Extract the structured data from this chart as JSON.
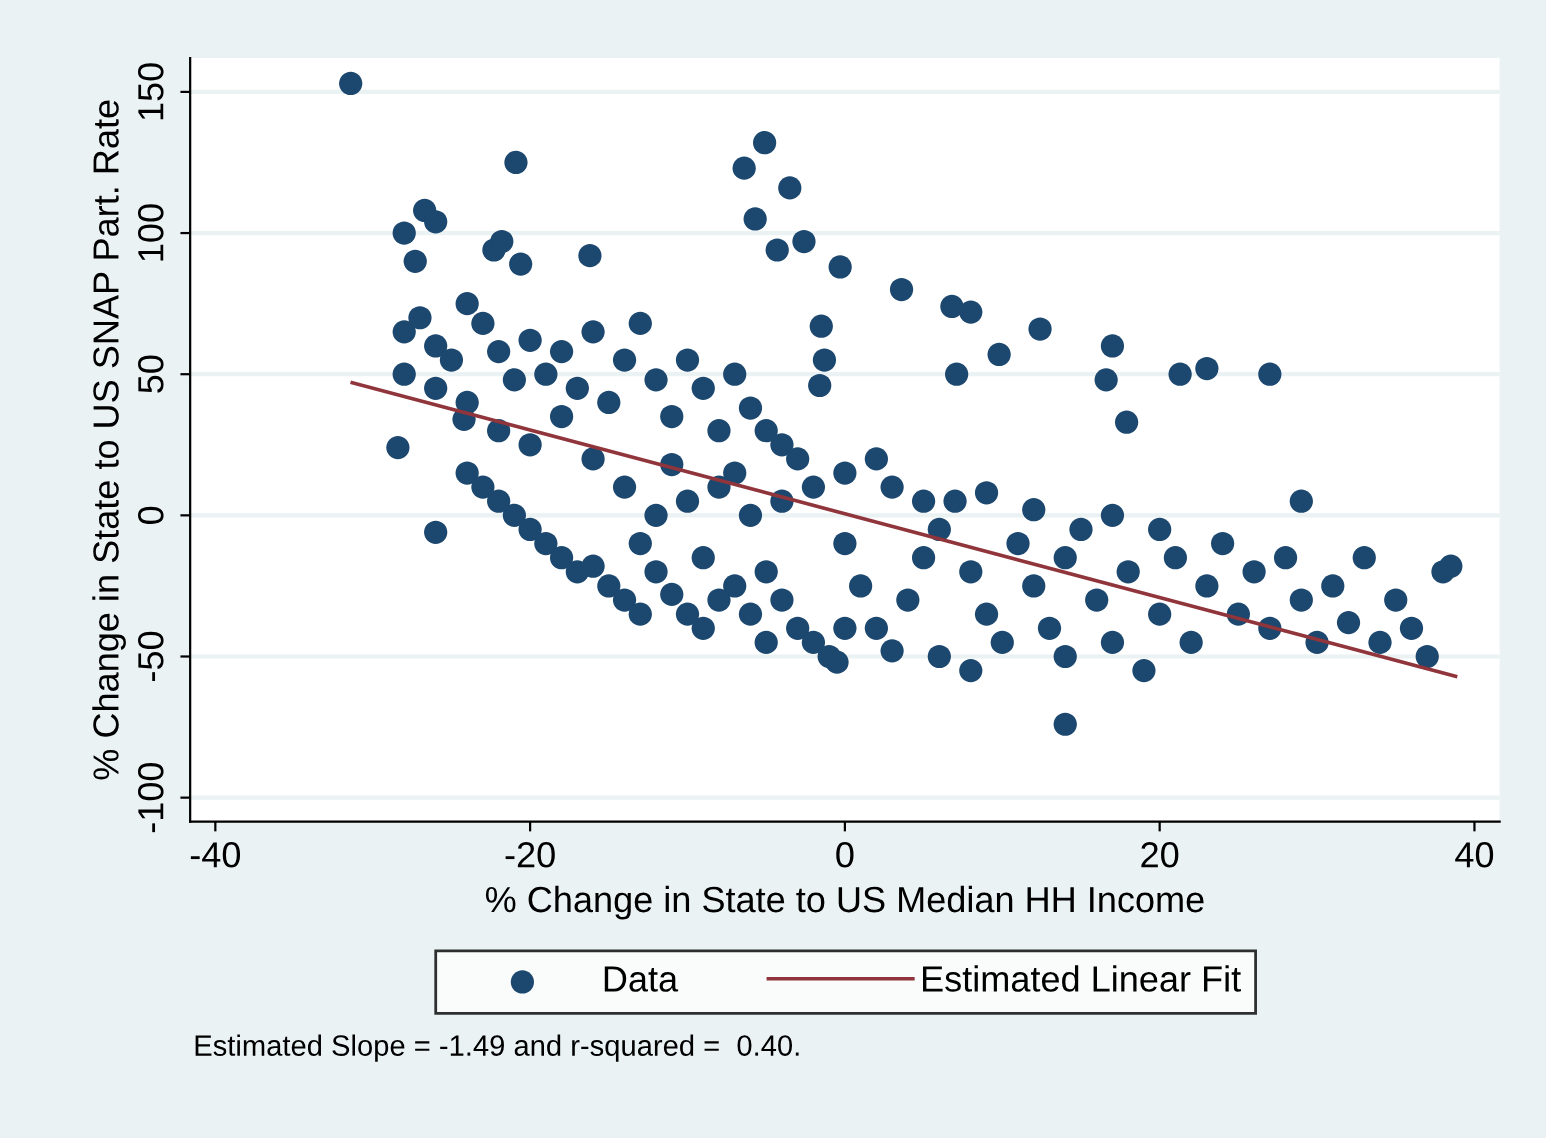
{
  "chart_data": {
    "type": "scatter",
    "xlabel": "% Change in State to US Median HH Income",
    "ylabel": "% Change in State to US SNAP Part. Rate",
    "xlim": [
      -41.6,
      41.6
    ],
    "xticks": [
      -40,
      -20,
      0,
      20,
      40
    ],
    "ylim": [
      -108.5,
      162
    ],
    "yticks": [
      -100,
      -50,
      0,
      50,
      100,
      150
    ],
    "grid": "y",
    "legend": "bottom",
    "annotations": [
      "Estimated Slope = -1.49 and r-squared =  0.40."
    ],
    "series": [
      {
        "name": "Data",
        "color": "#1c476e",
        "marker": "circle",
        "x": [
          -31.4,
          -20.9,
          -28,
          -26.7,
          -26,
          -27.3,
          -22.3,
          -21.8,
          -16.2,
          -20.6,
          -6.4,
          -5.1,
          -3.5,
          -5.7,
          -4.3,
          -2.6,
          -0.3,
          3.6,
          6.8,
          8.0,
          12.4,
          7.1,
          9.8,
          17.0,
          16.6,
          17.9,
          21.3,
          23,
          27,
          29,
          14,
          -1.5,
          -1.3,
          -1.6,
          -26,
          -28.4,
          -24.2,
          -28,
          -27,
          -26,
          -25,
          -24,
          -23,
          -22,
          -21,
          -20,
          -19,
          -18,
          -17,
          -16,
          -15,
          -14,
          -13,
          -12,
          -11,
          -10,
          -9,
          -8,
          -7,
          -6,
          -5,
          -4,
          -28,
          -26,
          -24,
          -22,
          -20,
          -18,
          -16,
          -24,
          -23,
          -22,
          -21,
          -20,
          -19,
          -18,
          -17,
          -16,
          -15,
          -14,
          -13,
          -12,
          -11,
          -10,
          -9,
          -8,
          -7,
          -6,
          -5,
          -4,
          -3,
          -2,
          -1,
          -12,
          -10,
          -8,
          -6,
          -4,
          -2,
          0,
          2,
          -14,
          -11,
          -7,
          -3,
          0,
          1,
          2,
          3,
          4,
          5,
          6,
          7,
          8,
          9,
          10,
          6,
          8,
          11,
          12,
          13,
          14,
          15,
          16,
          17,
          18,
          19,
          20,
          21,
          22,
          23,
          24,
          25,
          26,
          27,
          28,
          29,
          30,
          31,
          32,
          33,
          34,
          35,
          36,
          37,
          38,
          38.5,
          3,
          5,
          9,
          12,
          14,
          17,
          20,
          -13,
          -9,
          -5,
          0,
          -0.5
        ],
        "values": [
          153,
          125,
          100,
          108,
          104,
          90,
          94,
          97,
          92,
          89,
          123,
          132,
          116,
          105,
          94,
          97,
          88,
          80,
          74,
          72,
          66,
          50,
          57,
          60,
          48,
          33,
          50,
          52,
          50,
          5,
          -74,
          67,
          55,
          46,
          -6,
          24,
          34,
          65,
          70,
          60,
          55,
          75,
          68,
          58,
          48,
          62,
          50,
          58,
          45,
          65,
          40,
          55,
          68,
          48,
          35,
          55,
          45,
          30,
          50,
          38,
          30,
          25,
          50,
          45,
          40,
          30,
          25,
          35,
          20,
          15,
          10,
          5,
          0,
          -5,
          -10,
          -15,
          -20,
          -18,
          -25,
          -30,
          -10,
          -20,
          -28,
          -35,
          -15,
          -30,
          -25,
          -35,
          -20,
          -30,
          -40,
          -45,
          -50,
          0,
          5,
          10,
          0,
          5,
          10,
          15,
          20,
          10,
          18,
          15,
          20,
          -10,
          -25,
          -40,
          -48,
          -30,
          -15,
          -5,
          5,
          -20,
          -35,
          -45,
          -50,
          -55,
          -10,
          -25,
          -40,
          -50,
          -5,
          -30,
          -45,
          -20,
          -55,
          -35,
          -15,
          -45,
          -25,
          -10,
          -35,
          -20,
          -40,
          -15,
          -30,
          -45,
          -25,
          -38,
          -15,
          -45,
          -30,
          -40,
          -50,
          -20,
          -18,
          10,
          5,
          8,
          2,
          -15,
          0,
          -5,
          -35,
          -40,
          -45,
          -40,
          -52
        ]
      },
      {
        "name": "Estimated Linear Fit",
        "type": "line",
        "color": "#90353b",
        "x": [
          -31.3,
          38.8
        ],
        "values": [
          47,
          -57
        ]
      }
    ]
  }
}
